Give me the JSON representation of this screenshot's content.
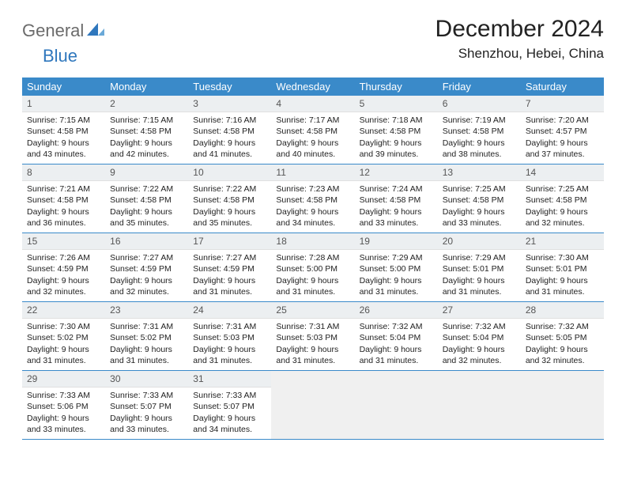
{
  "logo": {
    "part1": "General",
    "part2": "Blue"
  },
  "title": "December 2024",
  "location": "Shenzhou, Hebei, China",
  "colors": {
    "header_bg": "#3a8ac9",
    "header_text": "#ffffff",
    "daynum_bg": "#eceff1",
    "rule": "#3a8ac9",
    "logo_blue": "#2f77bd",
    "logo_gray": "#6b6b6b"
  },
  "day_labels": [
    "Sunday",
    "Monday",
    "Tuesday",
    "Wednesday",
    "Thursday",
    "Friday",
    "Saturday"
  ],
  "days": [
    {
      "n": "1",
      "sunrise": "Sunrise: 7:15 AM",
      "sunset": "Sunset: 4:58 PM",
      "daylight": "Daylight: 9 hours and 43 minutes."
    },
    {
      "n": "2",
      "sunrise": "Sunrise: 7:15 AM",
      "sunset": "Sunset: 4:58 PM",
      "daylight": "Daylight: 9 hours and 42 minutes."
    },
    {
      "n": "3",
      "sunrise": "Sunrise: 7:16 AM",
      "sunset": "Sunset: 4:58 PM",
      "daylight": "Daylight: 9 hours and 41 minutes."
    },
    {
      "n": "4",
      "sunrise": "Sunrise: 7:17 AM",
      "sunset": "Sunset: 4:58 PM",
      "daylight": "Daylight: 9 hours and 40 minutes."
    },
    {
      "n": "5",
      "sunrise": "Sunrise: 7:18 AM",
      "sunset": "Sunset: 4:58 PM",
      "daylight": "Daylight: 9 hours and 39 minutes."
    },
    {
      "n": "6",
      "sunrise": "Sunrise: 7:19 AM",
      "sunset": "Sunset: 4:58 PM",
      "daylight": "Daylight: 9 hours and 38 minutes."
    },
    {
      "n": "7",
      "sunrise": "Sunrise: 7:20 AM",
      "sunset": "Sunset: 4:57 PM",
      "daylight": "Daylight: 9 hours and 37 minutes."
    },
    {
      "n": "8",
      "sunrise": "Sunrise: 7:21 AM",
      "sunset": "Sunset: 4:58 PM",
      "daylight": "Daylight: 9 hours and 36 minutes."
    },
    {
      "n": "9",
      "sunrise": "Sunrise: 7:22 AM",
      "sunset": "Sunset: 4:58 PM",
      "daylight": "Daylight: 9 hours and 35 minutes."
    },
    {
      "n": "10",
      "sunrise": "Sunrise: 7:22 AM",
      "sunset": "Sunset: 4:58 PM",
      "daylight": "Daylight: 9 hours and 35 minutes."
    },
    {
      "n": "11",
      "sunrise": "Sunrise: 7:23 AM",
      "sunset": "Sunset: 4:58 PM",
      "daylight": "Daylight: 9 hours and 34 minutes."
    },
    {
      "n": "12",
      "sunrise": "Sunrise: 7:24 AM",
      "sunset": "Sunset: 4:58 PM",
      "daylight": "Daylight: 9 hours and 33 minutes."
    },
    {
      "n": "13",
      "sunrise": "Sunrise: 7:25 AM",
      "sunset": "Sunset: 4:58 PM",
      "daylight": "Daylight: 9 hours and 33 minutes."
    },
    {
      "n": "14",
      "sunrise": "Sunrise: 7:25 AM",
      "sunset": "Sunset: 4:58 PM",
      "daylight": "Daylight: 9 hours and 32 minutes."
    },
    {
      "n": "15",
      "sunrise": "Sunrise: 7:26 AM",
      "sunset": "Sunset: 4:59 PM",
      "daylight": "Daylight: 9 hours and 32 minutes."
    },
    {
      "n": "16",
      "sunrise": "Sunrise: 7:27 AM",
      "sunset": "Sunset: 4:59 PM",
      "daylight": "Daylight: 9 hours and 32 minutes."
    },
    {
      "n": "17",
      "sunrise": "Sunrise: 7:27 AM",
      "sunset": "Sunset: 4:59 PM",
      "daylight": "Daylight: 9 hours and 31 minutes."
    },
    {
      "n": "18",
      "sunrise": "Sunrise: 7:28 AM",
      "sunset": "Sunset: 5:00 PM",
      "daylight": "Daylight: 9 hours and 31 minutes."
    },
    {
      "n": "19",
      "sunrise": "Sunrise: 7:29 AM",
      "sunset": "Sunset: 5:00 PM",
      "daylight": "Daylight: 9 hours and 31 minutes."
    },
    {
      "n": "20",
      "sunrise": "Sunrise: 7:29 AM",
      "sunset": "Sunset: 5:01 PM",
      "daylight": "Daylight: 9 hours and 31 minutes."
    },
    {
      "n": "21",
      "sunrise": "Sunrise: 7:30 AM",
      "sunset": "Sunset: 5:01 PM",
      "daylight": "Daylight: 9 hours and 31 minutes."
    },
    {
      "n": "22",
      "sunrise": "Sunrise: 7:30 AM",
      "sunset": "Sunset: 5:02 PM",
      "daylight": "Daylight: 9 hours and 31 minutes."
    },
    {
      "n": "23",
      "sunrise": "Sunrise: 7:31 AM",
      "sunset": "Sunset: 5:02 PM",
      "daylight": "Daylight: 9 hours and 31 minutes."
    },
    {
      "n": "24",
      "sunrise": "Sunrise: 7:31 AM",
      "sunset": "Sunset: 5:03 PM",
      "daylight": "Daylight: 9 hours and 31 minutes."
    },
    {
      "n": "25",
      "sunrise": "Sunrise: 7:31 AM",
      "sunset": "Sunset: 5:03 PM",
      "daylight": "Daylight: 9 hours and 31 minutes."
    },
    {
      "n": "26",
      "sunrise": "Sunrise: 7:32 AM",
      "sunset": "Sunset: 5:04 PM",
      "daylight": "Daylight: 9 hours and 31 minutes."
    },
    {
      "n": "27",
      "sunrise": "Sunrise: 7:32 AM",
      "sunset": "Sunset: 5:04 PM",
      "daylight": "Daylight: 9 hours and 32 minutes."
    },
    {
      "n": "28",
      "sunrise": "Sunrise: 7:32 AM",
      "sunset": "Sunset: 5:05 PM",
      "daylight": "Daylight: 9 hours and 32 minutes."
    },
    {
      "n": "29",
      "sunrise": "Sunrise: 7:33 AM",
      "sunset": "Sunset: 5:06 PM",
      "daylight": "Daylight: 9 hours and 33 minutes."
    },
    {
      "n": "30",
      "sunrise": "Sunrise: 7:33 AM",
      "sunset": "Sunset: 5:07 PM",
      "daylight": "Daylight: 9 hours and 33 minutes."
    },
    {
      "n": "31",
      "sunrise": "Sunrise: 7:33 AM",
      "sunset": "Sunset: 5:07 PM",
      "daylight": "Daylight: 9 hours and 34 minutes."
    }
  ],
  "layout": {
    "first_day_col": 0,
    "cols": 7,
    "rows": 5
  }
}
